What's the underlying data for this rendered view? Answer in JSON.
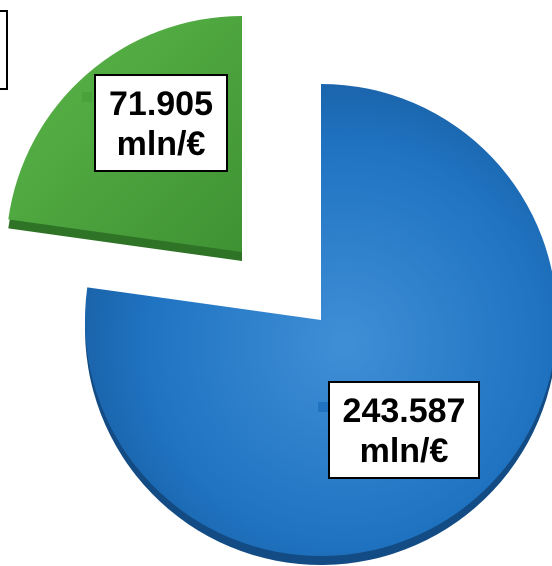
{
  "chart_data": {
    "type": "pie",
    "slices": [
      {
        "value": 71.905,
        "label_value": "71.905",
        "label_unit": "mln/€",
        "color": "#4aa23c"
      },
      {
        "value": 243.587,
        "label_value": "243.587",
        "label_unit": "mln/€",
        "color": "#1f73c1"
      }
    ],
    "title": "",
    "legend": "top-left (cut off)"
  }
}
